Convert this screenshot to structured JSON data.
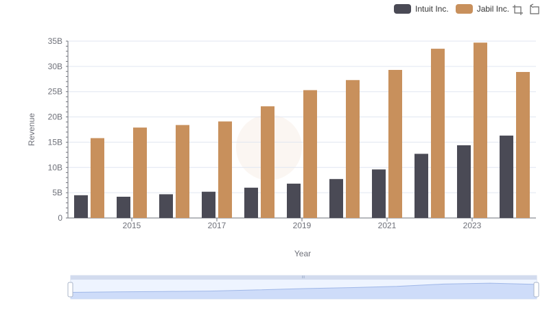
{
  "chart_data": {
    "type": "bar",
    "title": "",
    "xlabel": "Year",
    "ylabel": "Revenue",
    "ylim": [
      0,
      35000000000
    ],
    "y_ticks": [
      "0",
      "5B",
      "10B",
      "15B",
      "20B",
      "25B",
      "30B",
      "35B"
    ],
    "categories": [
      "2014",
      "2015",
      "2016",
      "2017",
      "2018",
      "2019",
      "2020",
      "2021",
      "2022",
      "2023",
      "2024"
    ],
    "x_tick_labels": [
      "2015",
      "2017",
      "2019",
      "2021",
      "2023"
    ],
    "series": [
      {
        "name": "Intuit Inc.",
        "color": "#4a4a55",
        "values": [
          4500000000,
          4200000000,
          4700000000,
          5200000000,
          6000000000,
          6800000000,
          7700000000,
          9600000000,
          12700000000,
          14400000000,
          16300000000
        ]
      },
      {
        "name": "Jabil Inc.",
        "color": "#c8905c",
        "values": [
          15800000000,
          17900000000,
          18400000000,
          19100000000,
          22100000000,
          25300000000,
          27300000000,
          29300000000,
          33500000000,
          34700000000,
          28900000000
        ]
      }
    ],
    "legend_position": "top-right",
    "grid": true
  },
  "legend": {
    "items": [
      "Intuit Inc.",
      "Jabil Inc."
    ]
  },
  "toolbox": {
    "icons": [
      "zoom-icon",
      "restore-icon"
    ]
  },
  "zoom_slider": {
    "range_start_percent": 0,
    "range_end_percent": 100,
    "handle_glyph": "III"
  }
}
